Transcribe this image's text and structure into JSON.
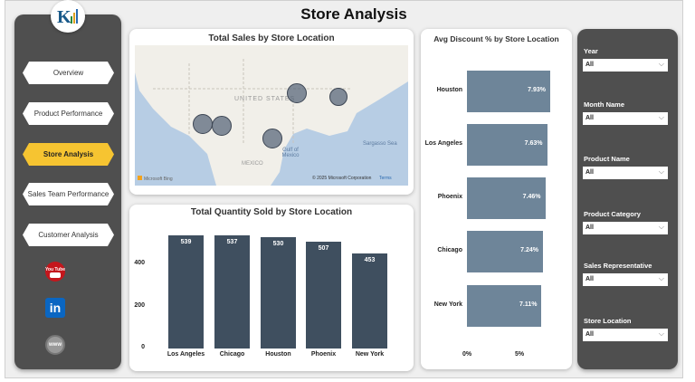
{
  "header": {
    "title": "Store Analysis"
  },
  "sidebar": {
    "items": [
      {
        "label": "Overview"
      },
      {
        "label": "Product Performance"
      },
      {
        "label": "Store Analysis",
        "active": true
      },
      {
        "label": "Sales Team Performance"
      },
      {
        "label": "Customer Analysis"
      }
    ],
    "social": {
      "youtube": "You Tube",
      "linkedin": "in",
      "web": "www"
    }
  },
  "map": {
    "title": "Total Sales by Store Location",
    "labels": {
      "country": "UNITED STATES",
      "gulf": "Gulf of Mexico",
      "sea": "Sargasso Sea",
      "mexico": "MEXICO"
    },
    "attribution": "Microsoft Bing",
    "copyright": "© 2025 Microsoft Corporation",
    "terms": "Terms",
    "locations": [
      "Los Angeles",
      "Phoenix",
      "Houston",
      "Chicago",
      "New York"
    ]
  },
  "chart_data": [
    {
      "type": "bar",
      "title": "Total Quantity Sold by Store Location",
      "categories": [
        "Los Angeles",
        "Chicago",
        "Houston",
        "Phoenix",
        "New York"
      ],
      "values": [
        539,
        537,
        530,
        507,
        453
      ],
      "yticks": [
        "0",
        "200",
        "400"
      ],
      "ylim": [
        0,
        600
      ],
      "color": "#3f4f5f"
    },
    {
      "type": "bar",
      "orientation": "horizontal",
      "title": "Avg Discount % by Store Location",
      "categories": [
        "Houston",
        "Los Angeles",
        "Phoenix",
        "Chicago",
        "New York"
      ],
      "values": [
        7.93,
        7.63,
        7.46,
        7.24,
        7.11
      ],
      "labels": [
        "7.93%",
        "7.63%",
        "7.46%",
        "7.24%",
        "7.11%"
      ],
      "xticks": [
        "0%",
        "5%"
      ],
      "color": "#6e8599"
    }
  ],
  "filters": [
    {
      "label": "Year",
      "value": "All"
    },
    {
      "label": "Month Name",
      "value": "All"
    },
    {
      "label": "Product Name",
      "value": "All"
    },
    {
      "label": "Product Category",
      "value": "All"
    },
    {
      "label": "Sales Representative",
      "value": "All"
    },
    {
      "label": "Store Location",
      "value": "All"
    }
  ]
}
